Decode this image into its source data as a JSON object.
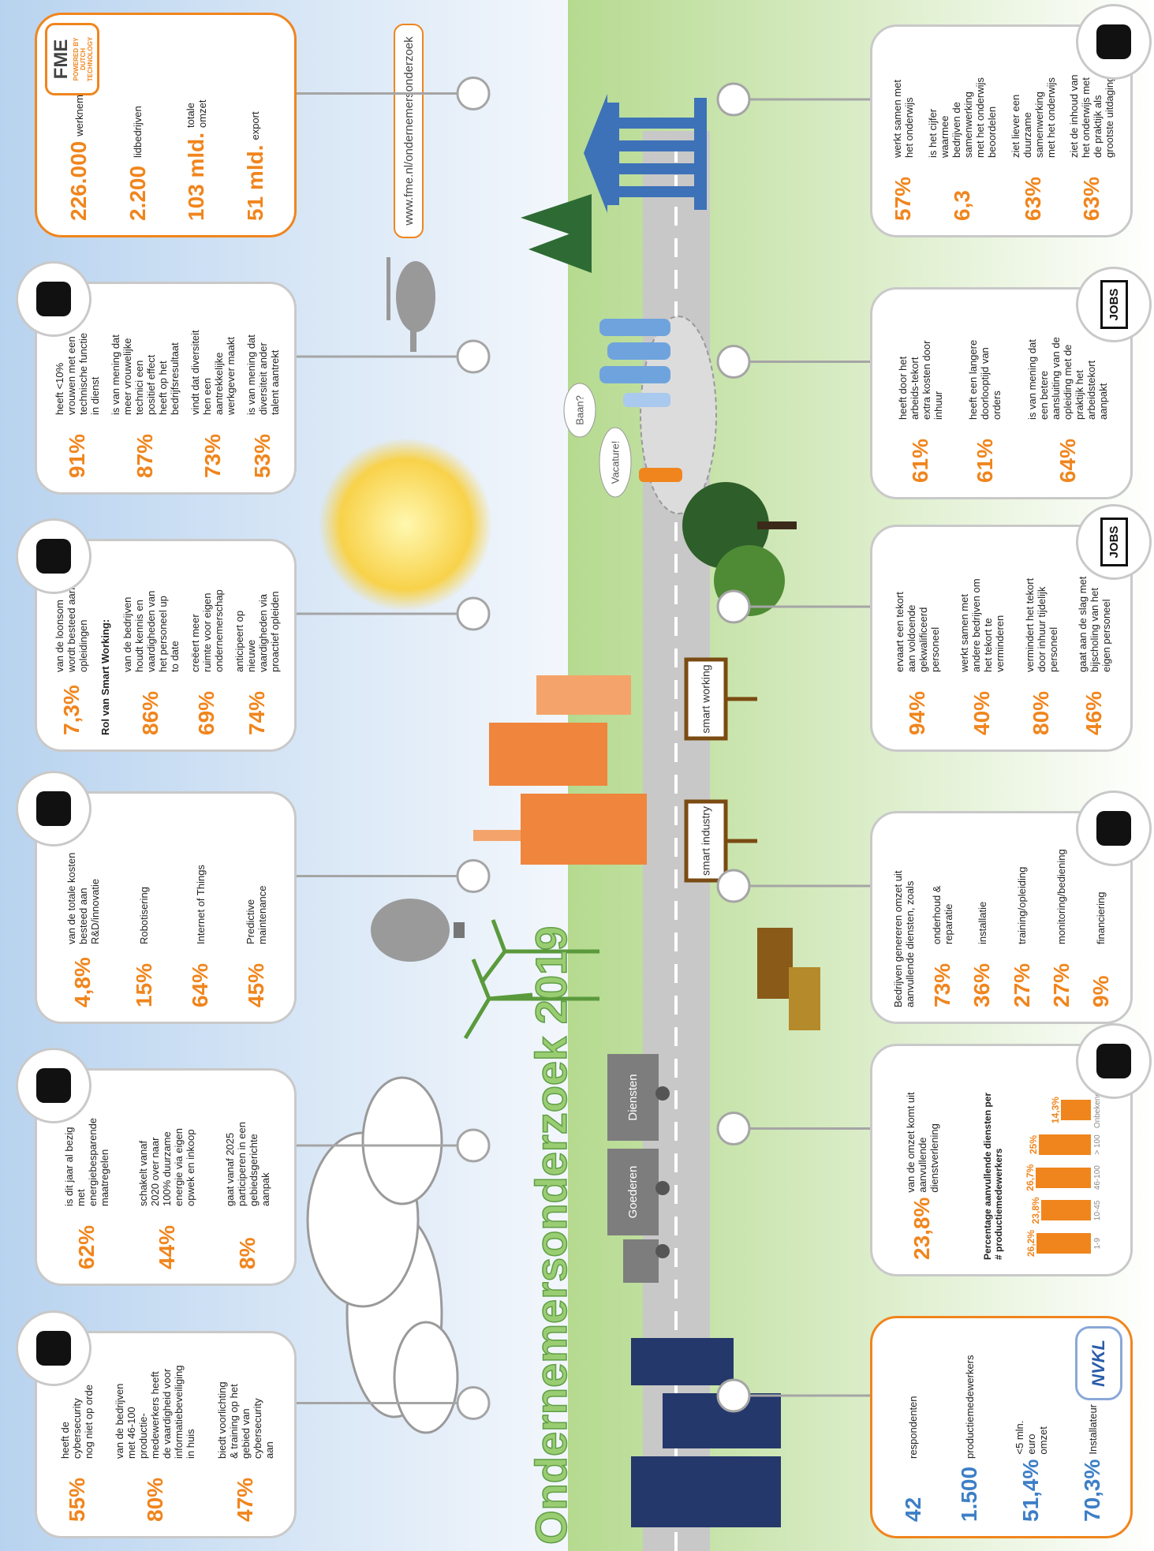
{
  "title": "Ondernemersonderzoek 2019",
  "url": "www.fme.nl/ondernemersonderzoek",
  "signs": [
    "smart working",
    "smart industry"
  ],
  "speech": [
    "Baan?",
    "Vacature!"
  ],
  "trucks": [
    "Goederen",
    "Diensten"
  ],
  "top_cards": [
    {
      "items": [
        {
          "value": "55%",
          "text": "heeft de cybersecurity nog niet op orde"
        },
        {
          "value": "80%",
          "text": "van de bedrijven met 46-100 productie-medewerkers heeft de vaardigheid voor informatiebeveiliging in huis"
        },
        {
          "value": "47%",
          "text": "biedt voorlichting & training op het gebied van cybersecurity aan"
        }
      ]
    },
    {
      "items": [
        {
          "value": "62%",
          "text": "is dit jaar al bezig met energiebesparende maatregelen"
        },
        {
          "value": "44%",
          "text": "schakelt vanaf 2020 over naar 100% duurzame energie via eigen opwek en inkoop"
        },
        {
          "value": "8%",
          "text": "gaat vanaf 2025 participeren in een gebiedsgerichte aanpak"
        }
      ]
    },
    {
      "items": [
        {
          "value": "4,8%",
          "text": "van de totale kosten besteed aan R&D/innovatie"
        },
        {
          "value": "15%",
          "text": "Robotisering"
        },
        {
          "value": "64%",
          "text": "Internet of Things"
        },
        {
          "value": "45%",
          "text": "Predictive maintenance"
        }
      ]
    },
    {
      "items": [
        {
          "value": "7,3%",
          "text": "van de loonsom wordt besteed aan opleidingen"
        },
        {
          "heading": "Rol van Smart Working:",
          "value": "86%",
          "text": "van de bedrijven houdt kennis en vaardigheden van het personeel up to date"
        },
        {
          "value": "69%",
          "text": "creëert meer ruimte voor eigen ondernemerschap"
        },
        {
          "value": "74%",
          "text": "anticipeert op nieuwe vaardigheden via proactief opleiden"
        }
      ]
    },
    {
      "items": [
        {
          "value": "91%",
          "text": "heeft <10% vrouwen met een technische functie in dienst"
        },
        {
          "value": "87%",
          "text": "is van mening dat meer vrouwelijke technici een positief effect heeft op het bedrijfsresultaat"
        },
        {
          "value": "73%",
          "text": "vindt dat diversiteit hen een aantrekkelijke werkgever maakt"
        },
        {
          "value": "53%",
          "text": "is van mening dat diversiteit ander talent aantrekt"
        }
      ]
    },
    {
      "logo": "FME",
      "tagline": "POWERED BY DUTCH TECHNOLOGY",
      "items": [
        {
          "value": "226.000",
          "text": "werknemers"
        },
        {
          "value": "2.200",
          "text": "lidbedrijven"
        },
        {
          "value": "103 mld.",
          "text": "totale omzet"
        },
        {
          "value": "51 mld.",
          "text": "export"
        }
      ]
    }
  ],
  "bottom_cards": [
    {
      "logo": "NVKL",
      "items": [
        {
          "value": "42",
          "text": "respondenten"
        },
        {
          "value": "1.500",
          "text": "productiemedewerkers"
        },
        {
          "value": "51,4%",
          "text": "<5 mln. euro omzet"
        },
        {
          "value": "70,3%",
          "text": "Installateur"
        }
      ]
    },
    {
      "items": [
        {
          "value": "23,8%",
          "text": "van de omzet komt uit aanvullende dienstverlening"
        }
      ],
      "chart": {
        "title": "Percentage aanvullende diensten per # productiemedewerkers",
        "categories": [
          "1-9",
          "10-45",
          "46-100",
          "> 100",
          "Onbekend"
        ],
        "values": [
          26.2,
          23.8,
          26.7,
          25,
          14.3
        ],
        "value_labels": [
          "26,2%",
          "23,8%",
          "26,7%",
          "25%",
          "14,3%"
        ],
        "color": "#f0851d"
      }
    },
    {
      "heading": "Bedrijven genereren omzet uit aanvullende diensten, zoals",
      "items": [
        {
          "value": "73%",
          "text": "onderhoud & reparatie"
        },
        {
          "value": "36%",
          "text": "installatie"
        },
        {
          "value": "27%",
          "text": "training/opleiding"
        },
        {
          "value": "27%",
          "text": "monitoring/bediening"
        },
        {
          "value": "9%",
          "text": "financiering"
        }
      ]
    },
    {
      "icon_label": "JOBS",
      "items": [
        {
          "value": "94%",
          "text": "ervaart een tekort aan voldoende gekwalificeerd personeel"
        },
        {
          "value": "40%",
          "text": "werkt samen met andere bedrijven om het tekort te verminderen"
        },
        {
          "value": "80%",
          "text": "vermindert het tekort door inhuur tijdelijk personeel"
        },
        {
          "value": "46%",
          "text": "gaat aan de slag met bijscholing van het eigen personeel"
        }
      ]
    },
    {
      "icon_label": "JOBS",
      "items": [
        {
          "value": "61%",
          "text": "heeft door het arbeids-tekort extra kosten door inhuur"
        },
        {
          "value": "61%",
          "text": "heeft een langere doorlooptijd van orders"
        },
        {
          "value": "64%",
          "text": "is van mening dat een betere aansluiting van de opleiding met de praktijk het arbeidstekort aanpakt"
        }
      ]
    },
    {
      "items": [
        {
          "value": "57%",
          "text": "werkt samen met het onderwijs"
        },
        {
          "value": "6,3",
          "text": "is het cijfer waarmee bedrijven de samenwerking met het onderwijs beoordelen"
        },
        {
          "value": "63%",
          "text": "ziet liever een duurzame samenwerking met het onderwijs"
        },
        {
          "value": "63%",
          "text": "ziet de inhoud van het onderwijs met de praktijk als grootste uitdaging"
        }
      ]
    }
  ]
}
